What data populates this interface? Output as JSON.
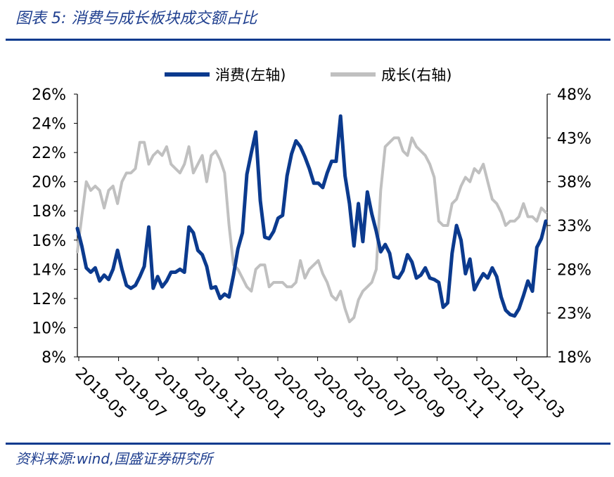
{
  "header": {
    "title": "图表 5:  消费与成长板块成交额占比"
  },
  "footer": {
    "source": "资料来源:wind,国盛证券研究所"
  },
  "chart_data": {
    "type": "line",
    "title": "图表 5:  消费与成长板块成交额占比",
    "legend_position": "top",
    "x_tick_labels": [
      "2019-05",
      "2019-07",
      "2019-09",
      "2019-11",
      "2020-01",
      "2020-03",
      "2020-05",
      "2020-07",
      "2020-09",
      "2020-11",
      "2021-01",
      "2021-03"
    ],
    "y_left": {
      "ticks": [
        "8%",
        "10%",
        "12%",
        "14%",
        "16%",
        "18%",
        "20%",
        "22%",
        "24%",
        "26%"
      ],
      "range": [
        8,
        26
      ]
    },
    "y_right": {
      "ticks": [
        "18%",
        "23%",
        "28%",
        "33%",
        "38%",
        "43%",
        "48%"
      ],
      "range": [
        18,
        48
      ]
    },
    "series": [
      {
        "name": "消费(左轴)",
        "axis": "left",
        "color": "#0b3a8e",
        "values": [
          16.8,
          15.6,
          14.1,
          13.8,
          14.1,
          13.2,
          13.6,
          13.3,
          14.0,
          15.3,
          14.0,
          12.9,
          12.7,
          12.9,
          13.5,
          14.2,
          16.9,
          12.7,
          13.5,
          12.8,
          13.2,
          13.8,
          13.8,
          14.0,
          13.8,
          16.9,
          16.5,
          15.3,
          15.0,
          14.2,
          12.7,
          12.8,
          12.0,
          12.3,
          12.1,
          13.6,
          15.4,
          16.5,
          20.5,
          22.0,
          23.4,
          18.7,
          16.2,
          16.1,
          16.6,
          17.5,
          17.7,
          20.4,
          21.9,
          22.8,
          22.4,
          21.7,
          20.9,
          19.9,
          19.9,
          19.6,
          20.6,
          21.4,
          21.4,
          24.5,
          20.4,
          18.5,
          15.6,
          18.5,
          15.9,
          19.3,
          17.8,
          16.6,
          15.2,
          15.7,
          15.1,
          13.5,
          13.4,
          13.9,
          15.0,
          14.5,
          13.4,
          13.6,
          14.1,
          13.4,
          13.3,
          13.1,
          11.4,
          11.7,
          15.1,
          17.0,
          16.0,
          13.7,
          14.7,
          12.6,
          13.2,
          13.7,
          13.4,
          14.1,
          13.5,
          12.1,
          11.2,
          10.9,
          10.8,
          11.3,
          12.2,
          13.2,
          12.5,
          15.5,
          16.1,
          17.3
        ],
        "x_start": "2019-05",
        "x_end": "2021-03"
      },
      {
        "name": "成长(右轴)",
        "axis": "right",
        "color": "#c0c0c0",
        "values": [
          30.0,
          34.0,
          38.0,
          37.0,
          37.5,
          37.0,
          35.0,
          37.0,
          37.5,
          35.5,
          38.0,
          39.0,
          39.0,
          39.5,
          42.5,
          42.5,
          40.0,
          41.0,
          41.5,
          41.0,
          42.0,
          40.0,
          39.5,
          39.0,
          40.0,
          42.0,
          39.0,
          40.0,
          41.0,
          38.0,
          41.0,
          41.5,
          40.5,
          39.0,
          33.0,
          28.5,
          28.0,
          27.0,
          26.0,
          25.5,
          28.0,
          28.5,
          28.5,
          26.0,
          26.5,
          26.5,
          26.5,
          26.0,
          26.0,
          26.5,
          29.0,
          27.0,
          28.0,
          28.5,
          29.0,
          27.5,
          26.5,
          25.0,
          24.5,
          25.5,
          23.5,
          22.0,
          22.5,
          24.5,
          25.5,
          26.0,
          26.5,
          28.0,
          37.0,
          42.0,
          42.5,
          43.0,
          43.0,
          41.5,
          41.0,
          43.0,
          42.0,
          41.5,
          41.0,
          40.0,
          38.5,
          33.5,
          33.0,
          33.0,
          35.5,
          36.0,
          37.5,
          38.5,
          38.0,
          39.5,
          39.0,
          40.0,
          38.0,
          36.0,
          35.5,
          34.5,
          33.0,
          33.5,
          33.5,
          34.0,
          35.5,
          34.0,
          34.0,
          33.5,
          35.0,
          34.5
        ]
      }
    ]
  }
}
